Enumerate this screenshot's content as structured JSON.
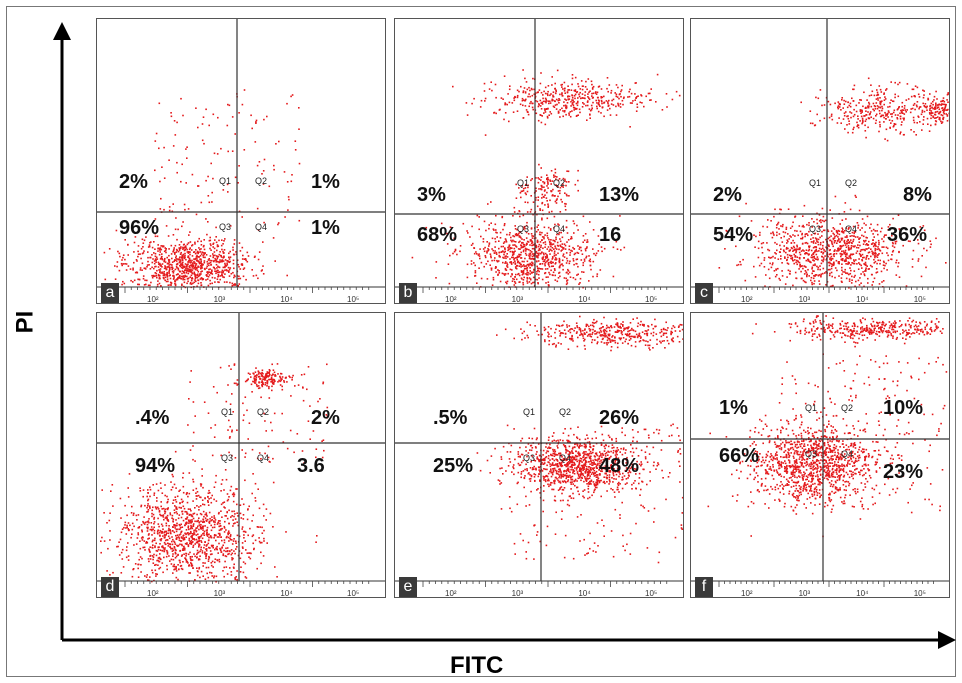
{
  "chart_data": {
    "type": "scatter",
    "xlabel": "FITC",
    "ylabel": "PI",
    "x_scale": "log",
    "y_scale": "log",
    "x_ticks": [
      "10²",
      "10³",
      "10⁴",
      "10⁵"
    ],
    "quadrant_labels": [
      "Q1",
      "Q2",
      "Q3",
      "Q4"
    ],
    "panels": [
      {
        "label": "a",
        "quadrants": {
          "Q1": "2%",
          "Q2": "1%",
          "Q3": "96%",
          "Q4": "1%"
        }
      },
      {
        "label": "b",
        "quadrants": {
          "Q1": "3%",
          "Q2": "13%",
          "Q3": "68%",
          "Q4": "16"
        }
      },
      {
        "label": "c",
        "quadrants": {
          "Q1": "2%",
          "Q2": "8%",
          "Q3": "54%",
          "Q4": "36%"
        }
      },
      {
        "label": "d",
        "quadrants": {
          "Q1": ".4%",
          "Q2": "2%",
          "Q3": "94%",
          "Q4": "3.6"
        }
      },
      {
        "label": "e",
        "quadrants": {
          "Q1": ".5%",
          "Q2": "26%",
          "Q3": "25%",
          "Q4": "48%"
        }
      },
      {
        "label": "f",
        "quadrants": {
          "Q1": "1%",
          "Q2": "10%",
          "Q3": "66%",
          "Q4": "23%"
        }
      }
    ],
    "dot_color": "#e41a1c"
  }
}
